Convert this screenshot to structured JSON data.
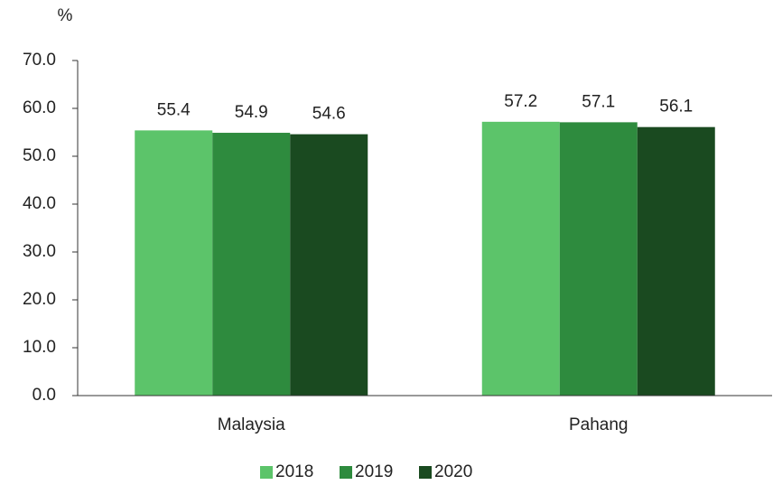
{
  "chart_data": {
    "type": "bar",
    "y_label": "%",
    "categories": [
      "Malaysia",
      "Pahang"
    ],
    "series": [
      {
        "name": "2018",
        "color": "#5cc46a",
        "values": [
          55.4,
          57.2
        ]
      },
      {
        "name": "2019",
        "color": "#2e8b3e",
        "values": [
          54.9,
          57.1
        ]
      },
      {
        "name": "2020",
        "color": "#1a4a20",
        "values": [
          54.6,
          56.1
        ]
      }
    ],
    "ylim": [
      0,
      70
    ],
    "yticks": [
      {
        "value": 0,
        "label": "0.0"
      },
      {
        "value": 10,
        "label": "10.0"
      },
      {
        "value": 20,
        "label": "20.0"
      },
      {
        "value": 30,
        "label": "30.0"
      },
      {
        "value": 40,
        "label": "40.0"
      },
      {
        "value": 50,
        "label": "50.0"
      },
      {
        "value": 60,
        "label": "60.0"
      },
      {
        "value": 70,
        "label": "70.0"
      }
    ],
    "grid": false,
    "legend": "bottom"
  }
}
